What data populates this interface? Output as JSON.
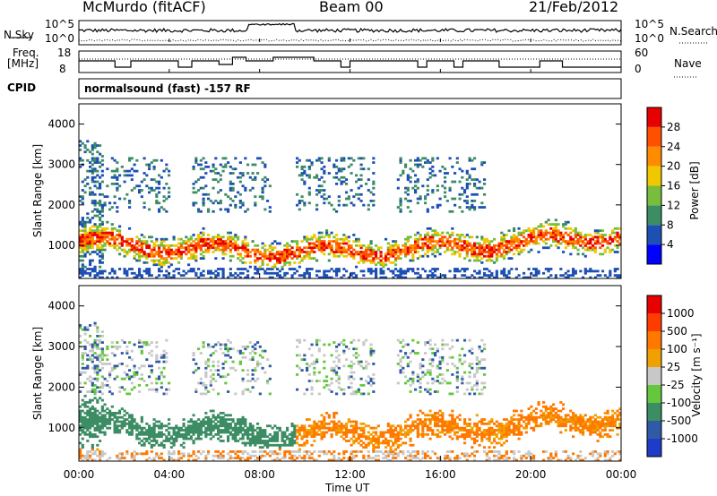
{
  "header": {
    "station": "McMurdo (fitACF)",
    "beam": "Beam 00",
    "date": "21/Feb/2012"
  },
  "labels": {
    "nsky": "N.Sky",
    "nsearch": "N.Search",
    "freq": "Freq.",
    "mhz": "[MHz]",
    "nave": "Nave",
    "cpid": "CPID",
    "cpid_value": "normalsound (fast) -157 RF",
    "noise_left_top": "10^5",
    "noise_left_bot": "10^0",
    "noise_right_top": "10^5",
    "noise_right_bot": "10^0",
    "freq_top": "18",
    "freq_bot": "8",
    "nave_top": "60",
    "nave_bot": "0",
    "xlabel": "Time UT",
    "ylabel_power": "Slant Range [km]",
    "ylabel_velocity": "Slant Range [km]",
    "power_cbar_label": "Power [dB]",
    "velocity_cbar_label": "Velocity [m s⁻¹]"
  },
  "chart_data": [
    {
      "type": "heatmap",
      "name": "Power",
      "xlabel": "Time UT",
      "ylabel": "Slant Range [km]",
      "x_ticks": [
        "00:00",
        "04:00",
        "08:00",
        "12:00",
        "16:00",
        "20:00",
        "00:00"
      ],
      "y_ticks": [
        1000,
        2000,
        3000,
        4000
      ],
      "ylim": [
        180,
        4500
      ],
      "xlim_hours": [
        0,
        24
      ],
      "colorbar": {
        "label": "Power [dB]",
        "ticks": [
          "4",
          "8",
          "12",
          "16",
          "20",
          "24",
          "28"
        ],
        "colors": [
          "#0000ff",
          "#1e50b4",
          "#3c8c64",
          "#78be3c",
          "#f0c800",
          "#ff8c00",
          "#ff5000",
          "#e60000"
        ]
      }
    },
    {
      "type": "heatmap",
      "name": "Velocity",
      "xlabel": "Time UT",
      "ylabel": "Slant Range [km]",
      "x_ticks": [
        "00:00",
        "04:00",
        "08:00",
        "12:00",
        "16:00",
        "20:00",
        "00:00"
      ],
      "y_ticks": [
        1000,
        2000,
        3000,
        4000
      ],
      "ylim": [
        180,
        4500
      ],
      "xlim_hours": [
        0,
        24
      ],
      "colorbar": {
        "label": "Velocity [m s⁻¹]",
        "ticks": [
          "1000",
          "500",
          "100",
          "25",
          "-25",
          "-100",
          "-500",
          "-1000"
        ],
        "colors": [
          "#1e3cc8",
          "#2f5aa5",
          "#3c8c64",
          "#64c83c",
          "#c8c8c8",
          "#f0a000",
          "#ff7800",
          "#ff3c00",
          "#e60000"
        ]
      }
    }
  ]
}
